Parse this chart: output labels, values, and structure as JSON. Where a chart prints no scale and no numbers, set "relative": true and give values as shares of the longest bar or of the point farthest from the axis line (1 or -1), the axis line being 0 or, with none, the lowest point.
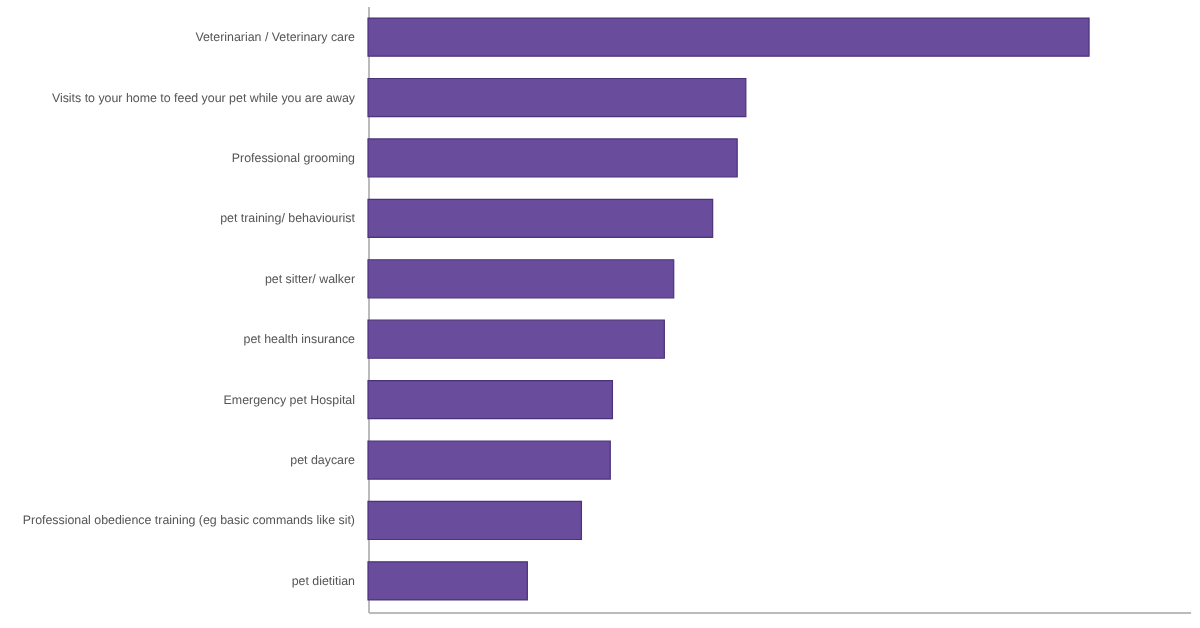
{
  "chart_data": {
    "type": "bar",
    "orientation": "horizontal",
    "relative": true,
    "categories": [
      "Veterinarian / Veterinary care",
      "Visits to your home to feed your pet while you are away",
      "Professional grooming",
      "pet training/ behaviourist",
      "pet sitter/ walker",
      "pet health insurance",
      "Emergency pet Hospital",
      "pet daycare",
      "Professional obedience training (eg basic commands like sit)",
      "pet dietitian"
    ],
    "values": [
      1,
      0.524,
      0.512,
      0.478,
      0.424,
      0.411,
      0.339,
      0.336,
      0.296,
      0.221
    ],
    "color": "#6a4c9c",
    "grid": false
  }
}
